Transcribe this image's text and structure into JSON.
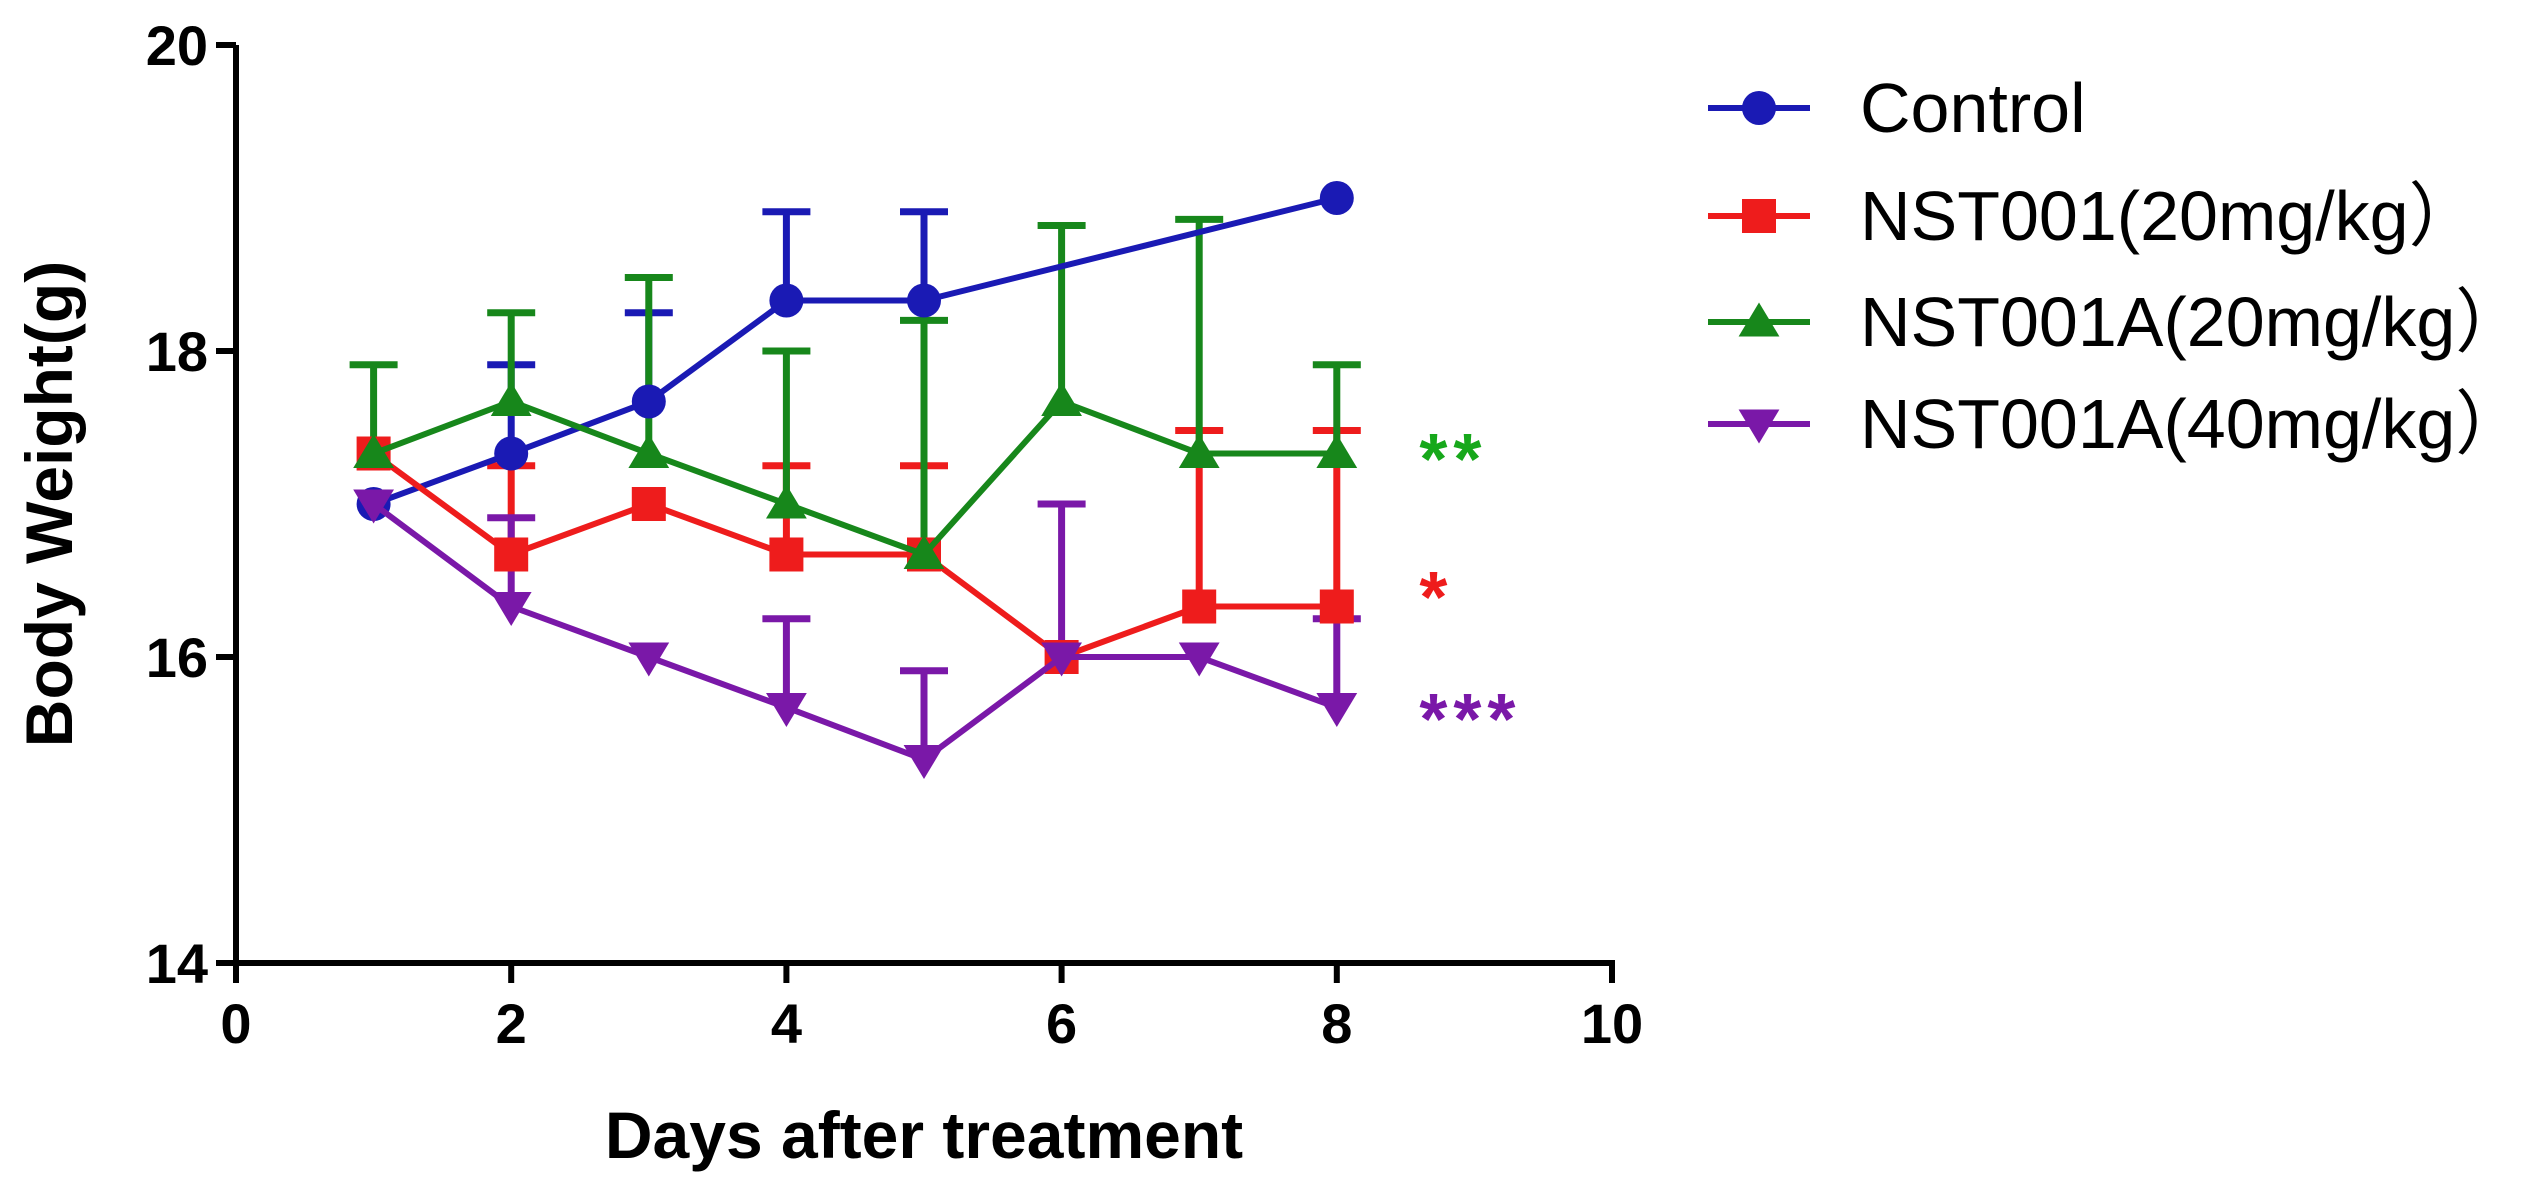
{
  "chart_data": {
    "type": "line",
    "title": "",
    "xlabel": "Days after treatment",
    "ylabel": "Body Weight(g)",
    "xlim": [
      0,
      10
    ],
    "ylim": [
      14,
      20
    ],
    "xticks": [
      0,
      2,
      4,
      6,
      8,
      10
    ],
    "yticks": [
      14,
      16,
      18,
      20
    ],
    "grid": false,
    "legend_position": "right",
    "series": [
      {
        "name": "Control",
        "color": "#1a1ab4",
        "marker": "circle",
        "x": [
          1,
          2,
          3,
          4,
          5,
          8
        ],
        "values": [
          17.0,
          17.33,
          17.67,
          18.33,
          18.33,
          19.0
        ],
        "error": [
          null,
          0.58,
          0.58,
          0.58,
          0.58,
          null
        ]
      },
      {
        "name": "NST001(20mg/kg）",
        "color": "#ee1c1c",
        "marker": "square",
        "x": [
          1,
          2,
          3,
          4,
          5,
          6,
          7,
          8
        ],
        "values": [
          17.33,
          16.67,
          17.0,
          16.67,
          16.67,
          16.0,
          16.33,
          16.33
        ],
        "error": [
          null,
          0.58,
          null,
          0.58,
          0.58,
          null,
          1.15,
          1.15
        ]
      },
      {
        "name": "NST001A(20mg/kg）",
        "color": "#17871b",
        "marker": "triangle-up",
        "x": [
          1,
          2,
          3,
          4,
          5,
          6,
          7,
          8
        ],
        "values": [
          17.33,
          17.67,
          17.33,
          17.0,
          16.67,
          17.67,
          17.33,
          17.33
        ],
        "error": [
          0.58,
          0.58,
          1.15,
          1.0,
          1.53,
          1.15,
          1.53,
          0.58
        ]
      },
      {
        "name": "NST001A(40mg/kg）",
        "color": "#7a18a8",
        "marker": "triangle-down",
        "x": [
          1,
          2,
          3,
          4,
          5,
          6,
          7,
          8
        ],
        "values": [
          17.0,
          16.33,
          16.0,
          15.67,
          15.33,
          16.0,
          16.0,
          15.67
        ],
        "error": [
          null,
          0.58,
          null,
          0.58,
          0.58,
          1.0,
          null,
          0.58
        ]
      }
    ],
    "annotations": [
      {
        "text": "**",
        "color": "#17a81b",
        "x": 8.6,
        "y": 17.3
      },
      {
        "text": "*",
        "color": "#ee1c1c",
        "x": 8.6,
        "y": 16.4
      },
      {
        "text": "***",
        "color": "#7a18a8",
        "x": 8.6,
        "y": 15.6
      }
    ]
  }
}
